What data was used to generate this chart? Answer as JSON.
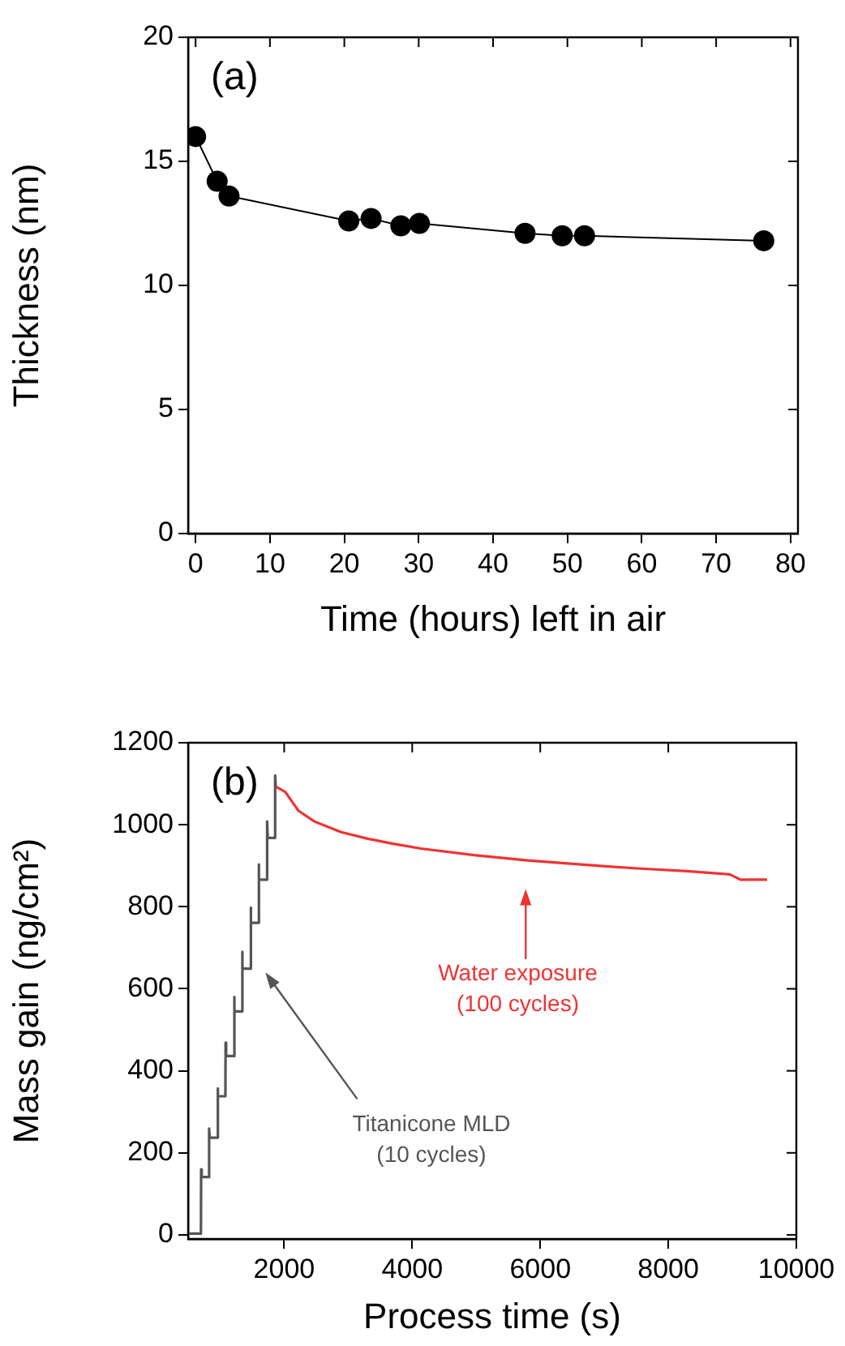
{
  "chart_data": [
    {
      "type": "line",
      "xlabel": "Time (hours) left in air",
      "ylabel": "Thickness (nm)",
      "annotations": [
        "(a)"
      ],
      "xlim": [
        -1,
        81
      ],
      "xticks": [
        0,
        10,
        20,
        30,
        40,
        50,
        60,
        70,
        80
      ],
      "ylim": [
        0,
        20
      ],
      "yticks": [
        0,
        5,
        10,
        15,
        20
      ],
      "grid": false,
      "legend": false,
      "marker": "circle",
      "line_style": "solid",
      "series": [
        {
          "color": "#000000",
          "x": [
            0,
            2.9,
            4.5,
            20.6,
            23.6,
            27.6,
            30.1,
            44.3,
            49.3,
            52.3,
            76.4
          ],
          "values": [
            16.0,
            14.2,
            13.6,
            12.6,
            12.7,
            12.4,
            12.5,
            12.1,
            12.0,
            12.0,
            11.8
          ]
        }
      ]
    },
    {
      "type": "line",
      "xlabel": "Process time (s)",
      "ylabel": "Mass gain (ng/cm²)",
      "xlim": [
        500,
        10000
      ],
      "xticks": [
        2000,
        4000,
        6000,
        8000,
        10000
      ],
      "ylim": [
        -10,
        1200
      ],
      "yticks": [
        0,
        200,
        400,
        600,
        800,
        1000,
        1200
      ],
      "grid": false,
      "legend": false,
      "marker": "none",
      "line_style": "solid",
      "annotations": [
        "(b)",
        "Titanicone MLD\n(10 cycles)",
        "Water exposure\n(100 cycles)"
      ],
      "series": [
        {
          "color": "#555555",
          "x": [
            520,
            700,
            703,
            712,
            825,
            828,
            837,
            957,
            960,
            969,
            1082,
            1085,
            1094,
            1215,
            1218,
            1227,
            1340,
            1343,
            1352,
            1473,
            1476,
            1485,
            1598,
            1601,
            1610,
            1731,
            1734,
            1743,
            1856,
            1859,
            1868
          ],
          "values": [
            3,
            3,
            160,
            141,
            141,
            259,
            237,
            237,
            357,
            338,
            338,
            469,
            436,
            436,
            580,
            545,
            545,
            690,
            649,
            649,
            798,
            761,
            761,
            903,
            866,
            866,
            1008,
            968,
            968,
            1120,
            1093
          ]
        },
        {
          "color": "#ee3333",
          "x": [
            1870,
            2017,
            2224,
            2474,
            2890,
            3306,
            3721,
            4137,
            4969,
            5800,
            6632,
            7464,
            8296,
            8961,
            9127,
            9543
          ],
          "values": [
            1093,
            1080,
            1034,
            1008,
            982,
            966,
            953,
            942,
            926,
            913,
            903,
            894,
            887,
            879,
            866,
            866
          ]
        }
      ]
    }
  ]
}
